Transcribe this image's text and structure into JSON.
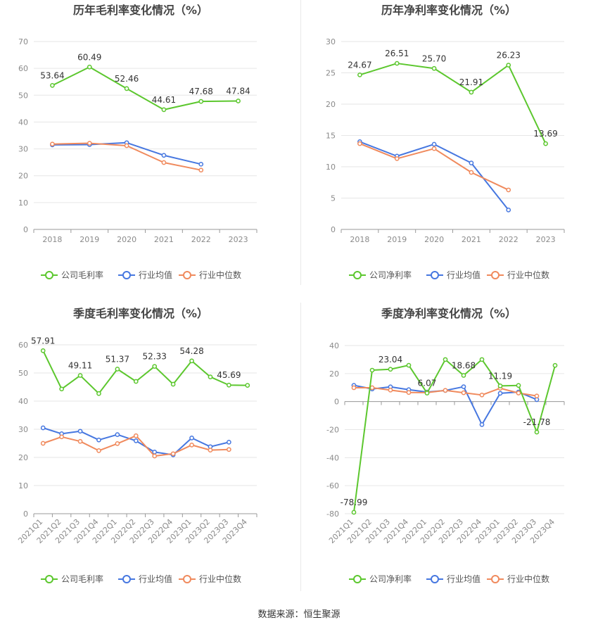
{
  "colors": {
    "company": "#5cc72e",
    "industry_avg": "#4677e0",
    "industry_median": "#f08a5d",
    "grid": "#e6e6e6",
    "axis_text": "#8a8a8a",
    "title": "#444444"
  },
  "legend": {
    "company_gross": "公司毛利率",
    "company_net": "公司净利率",
    "avg": "行业均值",
    "median": "行业中位数"
  },
  "source_text": "数据来源：恒生聚源",
  "chart_data": [
    {
      "type": "line",
      "title": "历年毛利率变化情况（%）",
      "categories": [
        "2018",
        "2019",
        "2020",
        "2021",
        "2022",
        "2023"
      ],
      "ylim": [
        0,
        70
      ],
      "yticks": [
        0,
        10,
        20,
        30,
        40,
        50,
        60,
        70
      ],
      "legend_position": "bottom",
      "grid": true,
      "series": [
        {
          "name": "公司毛利率",
          "values": [
            53.64,
            60.49,
            52.46,
            44.61,
            47.68,
            47.84
          ],
          "labels": [
            "53.64",
            "60.49",
            "52.46",
            "44.61",
            "47.68",
            "47.84"
          ]
        },
        {
          "name": "行业均值",
          "values": [
            31.5,
            31.6,
            32.3,
            27.6,
            24.3,
            null
          ]
        },
        {
          "name": "行业中位数",
          "values": [
            31.8,
            32.1,
            31.2,
            24.9,
            22.1,
            null
          ]
        }
      ]
    },
    {
      "type": "line",
      "title": "历年净利率变化情况（%）",
      "categories": [
        "2018",
        "2019",
        "2020",
        "2021",
        "2022",
        "2023"
      ],
      "ylim": [
        0,
        30
      ],
      "yticks": [
        0,
        5,
        10,
        15,
        20,
        25,
        30
      ],
      "legend_position": "bottom",
      "grid": true,
      "series": [
        {
          "name": "公司净利率",
          "values": [
            24.67,
            26.51,
            25.7,
            21.91,
            26.23,
            13.69
          ],
          "labels": [
            "24.67",
            "26.51",
            "25.70",
            "21.91",
            "26.23",
            "13.69"
          ]
        },
        {
          "name": "行业均值",
          "values": [
            14.0,
            11.7,
            13.6,
            10.6,
            3.1,
            null
          ]
        },
        {
          "name": "行业中位数",
          "values": [
            13.7,
            11.3,
            12.9,
            9.1,
            6.3,
            null
          ]
        }
      ]
    },
    {
      "type": "line",
      "title": "季度毛利率变化情况（%）",
      "categories": [
        "2021Q1",
        "2021Q2",
        "2021Q3",
        "2021Q4",
        "2022Q1",
        "2022Q2",
        "2022Q3",
        "2022Q4",
        "2023Q1",
        "2023Q2",
        "2023Q3",
        "2023Q4"
      ],
      "ylim": [
        0,
        60
      ],
      "yticks": [
        0,
        10,
        20,
        30,
        40,
        50,
        60
      ],
      "legend_position": "bottom",
      "grid": true,
      "series": [
        {
          "name": "公司毛利率",
          "values": [
            57.91,
            44.3,
            49.11,
            42.7,
            51.37,
            47.0,
            52.33,
            46.0,
            54.28,
            48.6,
            45.69,
            45.6
          ],
          "labels": [
            "57.91",
            "",
            "49.11",
            "",
            "51.37",
            "",
            "52.33",
            "",
            "54.28",
            "",
            "45.69",
            ""
          ]
        },
        {
          "name": "行业均值",
          "values": [
            30.5,
            28.4,
            29.3,
            26.2,
            28.1,
            25.9,
            21.9,
            20.9,
            26.9,
            23.8,
            25.4,
            null
          ]
        },
        {
          "name": "行业中位数",
          "values": [
            25.0,
            27.3,
            25.7,
            22.4,
            24.9,
            27.7,
            20.5,
            21.3,
            24.4,
            22.6,
            22.8,
            null
          ]
        }
      ]
    },
    {
      "type": "line",
      "title": "季度净利率变化情况（%）",
      "categories": [
        "2021Q1",
        "2021Q2",
        "2021Q3",
        "2021Q4",
        "2022Q1",
        "2022Q2",
        "2022Q3",
        "2022Q4",
        "2023Q1",
        "2023Q2",
        "2023Q3",
        "2023Q4"
      ],
      "ylim": [
        -80,
        40
      ],
      "yticks": [
        -80,
        -60,
        -40,
        -20,
        0,
        20,
        40
      ],
      "legend_position": "bottom",
      "grid": true,
      "series": [
        {
          "name": "公司净利率",
          "values": [
            -78.99,
            22.4,
            23.04,
            25.9,
            6.07,
            30.0,
            18.68,
            30.0,
            11.19,
            11.5,
            -21.78,
            25.8
          ],
          "labels": [
            "-78.99",
            "",
            "23.04",
            "",
            "6.07",
            "",
            "18.68",
            "",
            "11.19",
            "",
            "-21.78",
            ""
          ]
        },
        {
          "name": "行业均值",
          "values": [
            11.6,
            9.0,
            10.5,
            8.5,
            6.8,
            7.9,
            10.6,
            -16.4,
            5.9,
            6.8,
            1.4,
            null
          ]
        },
        {
          "name": "行业中位数",
          "values": [
            9.9,
            9.9,
            8.2,
            6.5,
            6.4,
            8.0,
            6.3,
            4.7,
            9.5,
            6.1,
            4.0,
            null
          ]
        }
      ]
    }
  ]
}
